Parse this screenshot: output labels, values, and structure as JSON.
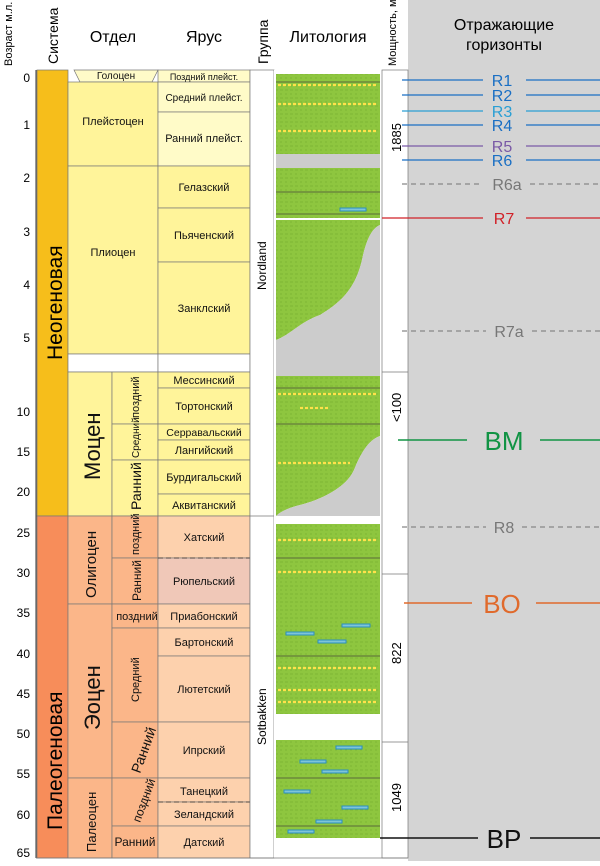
{
  "header": {
    "age_label": "Возраст м.л.",
    "system": "Система",
    "series": "Отдел",
    "stage": "Ярус",
    "group": "Группа",
    "lithology": "Литология",
    "thickness": "Мощность, м",
    "horizons_line1": "Отражающие",
    "horizons_line2": "горизонты"
  },
  "age_ticks": [
    "0",
    "1",
    "2",
    "3",
    "4",
    "5",
    "10",
    "15",
    "20",
    "25",
    "30",
    "35",
    "40",
    "45",
    "50",
    "55",
    "60",
    "65"
  ],
  "systems": {
    "neogene": "Неогеновая",
    "paleogene": "Палеогеновая"
  },
  "series": {
    "holocene": "Голоцен",
    "pleistocene": "Плейстоцен",
    "pliocene": "Плиоцен",
    "miocene": "Моцен",
    "oligocene": "Олигоцен",
    "eocene": "Эоцен",
    "paleocene": "Палеоцен"
  },
  "subseries": {
    "miocene_late": "поздний",
    "miocene_middle": "Средний",
    "miocene_early": "Ранний",
    "oligocene_late": "поздний",
    "oligocene_early": "Ранний",
    "eocene_late": "поздний",
    "eocene_middle": "Средний",
    "eocene_early": "Ранний",
    "paleocene_late": "поздний",
    "paleocene_early": "Ранний"
  },
  "stages": {
    "late_pleist": "Поздний плейст.",
    "middle_pleist": "Средний плейст.",
    "early_pleist": "Ранний плейст.",
    "gelasian": "Гелазский",
    "piacenzian": "Пьяченский",
    "zanclean": "Занклский",
    "messinian": "Мессинский",
    "tortonian": "Тортонский",
    "serravallian": "Серравальский",
    "langhian": "Лангийский",
    "burdigalian": "Бурдигальский",
    "aquitanian": "Аквитанский",
    "chattian": "Хатский",
    "rupelian": "Рюпельский",
    "priabonian": "Приабонский",
    "bartonian": "Бартонский",
    "lutetian": "Лютетский",
    "ypresian": "Ипрский",
    "thanetian": "Танецкий",
    "selandian": "Зеландский",
    "danian": "Датский"
  },
  "groups": {
    "nordland": "Nordland",
    "sotbakken": "Sotbakken"
  },
  "thickness": {
    "t1885": "1885",
    "t100": "<100",
    "t822": "822",
    "t1049": "1049"
  },
  "horizons": {
    "R1": "R1",
    "R2": "R2",
    "R3": "R3",
    "R4": "R4",
    "R5": "R5",
    "R6": "R6",
    "R6a": "R6a",
    "R7": "R7",
    "R7a": "R7a",
    "BM": "BM",
    "R8": "R8",
    "BO": "BO",
    "BP": "BP"
  },
  "colors": {
    "neogene": "#f6be1b",
    "neogene_series": "#fff49a",
    "neogene_stage": "#fffbc8",
    "paleogene": "#f78d5a",
    "paleogene_series": "#fbb689",
    "paleogene_stage": "#fdd1ad",
    "lithology_green": "#8ec63f",
    "gap_grey": "#cccccc",
    "R1_R4": "#1a6fc4",
    "R5": "#7a5aa6",
    "R6": "#1a6fc4",
    "R7": "#d12027",
    "BM": "#119344",
    "BO": "#e06a2c",
    "BP": "#111111",
    "dashed_grey": "#888888"
  }
}
